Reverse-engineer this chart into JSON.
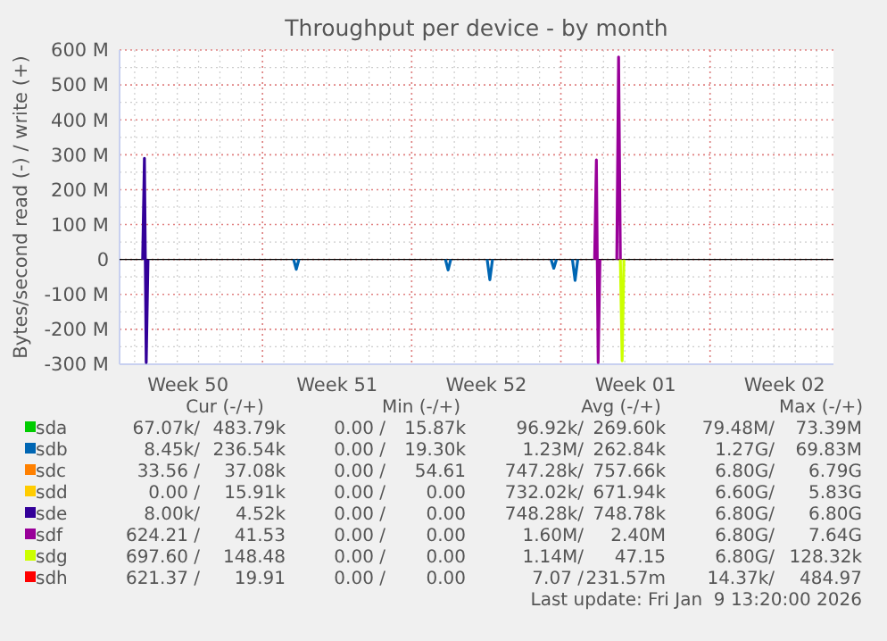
{
  "chart_data": {
    "type": "line",
    "title": "Throughput per device - by month",
    "ylabel": "Bytes/second read (-) / write (+)",
    "xlim": [
      "2025-12-08T07:00",
      "2026-01-10T19:00"
    ],
    "ylim": [
      -300,
      600
    ],
    "xticks": [
      {
        "value": "2025-12-11T12:00",
        "label": "Week 50"
      },
      {
        "value": "2025-12-15",
        "label": null
      },
      {
        "value": "2025-12-18T12:00",
        "label": "Week 51"
      },
      {
        "value": "2025-12-22",
        "label": null
      },
      {
        "value": "2025-12-25T12:00",
        "label": "Week 52"
      },
      {
        "value": "2025-12-29",
        "label": null
      },
      {
        "value": "2026-01-01T12:00",
        "label": "Week 01"
      },
      {
        "value": "2026-01-05",
        "label": null
      },
      {
        "value": "2026-01-08T12:00",
        "label": "Week 02"
      }
    ],
    "yticks": [
      {
        "value": -300,
        "label": "-300 M"
      },
      {
        "value": -200,
        "label": "-200 M"
      },
      {
        "value": -100,
        "label": "-100 M"
      },
      0,
      {
        "value": 100,
        "label": "100 M"
      },
      {
        "value": 200,
        "label": "200 M"
      },
      {
        "value": 300,
        "label": "300 M"
      },
      {
        "value": 400,
        "label": "400 M"
      },
      {
        "value": 500,
        "label": "500 M"
      },
      {
        "value": 600,
        "label": "600 M"
      }
    ],
    "grid": true,
    "legend": "bottom",
    "series": [
      {
        "name": "sda",
        "color": "#00cc00"
      },
      {
        "name": "sdb",
        "color": "#0066b3",
        "x": [
          "2025-12-16T11:00",
          "2025-12-16T14:00",
          "2025-12-16T17:00",
          "2025-12-16T18:00",
          "2025-12-23T14:00",
          "2025-12-23T17:00",
          "2025-12-23T20:00",
          "2025-12-23T21:00",
          "2025-12-25T13:00",
          "2025-12-25T16:00",
          "2025-12-25T19:00",
          "2025-12-25T20:00",
          "2025-12-28T13:00",
          "2025-12-28T16:00",
          "2025-12-28T19:00",
          "2025-12-28T20:00",
          "2025-12-29T13:00",
          "2025-12-29T16:00",
          "2025-12-29T19:00"
        ],
        "values": [
          0,
          -28,
          0,
          null,
          0,
          -30,
          0,
          null,
          0,
          -58,
          0,
          null,
          0,
          -25,
          0,
          null,
          0,
          -60,
          0
        ]
      },
      {
        "name": "sdc",
        "color": "#ff8000"
      },
      {
        "name": "sdd",
        "color": "#ffcc00"
      },
      {
        "name": "sde",
        "color": "#330099",
        "x": [
          "2025-12-09T09:00",
          "2025-12-09T11:00",
          "2025-12-09T12:00",
          "2025-12-09T13:00",
          "2025-12-09T15:00"
        ],
        "values": [
          0,
          290,
          0,
          -295,
          0
        ]
      },
      {
        "name": "sdf",
        "color": "#990099",
        "x": [
          "2025-12-30T14:00",
          "2025-12-30T16:00",
          "2025-12-30T17:00",
          "2025-12-30T18:00",
          "2025-12-30T20:00",
          "2025-12-30T21:00",
          "2025-12-31T15:00",
          "2025-12-31T17:00",
          "2025-12-31T19:00"
        ],
        "values": [
          0,
          285,
          0,
          -295,
          0,
          null,
          0,
          580,
          0
        ]
      },
      {
        "name": "sdg",
        "color": "#ccff00",
        "x": [
          "2025-12-31T19:00",
          "2025-12-31T21:00",
          "2025-12-31T23:00"
        ],
        "values": [
          0,
          -290,
          0
        ]
      },
      {
        "name": "sdh",
        "color": "#ff0000"
      }
    ],
    "annotations": [
      "Cur (-/+)",
      "Min (-/+)",
      "Avg (-/+)",
      "Max (-/+)",
      "67.07k/",
      "483.79k",
      "0.00 /",
      "15.87k",
      "96.92k/",
      "269.60k",
      "79.48M/",
      "73.39M",
      "8.45k/",
      "236.54k",
      "0.00 /",
      "19.30k",
      "1.23M/",
      "262.84k",
      "1.27G/",
      "69.83M",
      "33.56 /",
      "37.08k",
      "0.00 /",
      "54.61",
      "747.28k/",
      "757.66k",
      "6.80G/",
      "6.79G",
      "0.00 /",
      "15.91k",
      "0.00 /",
      "0.00",
      "732.02k/",
      "671.94k",
      "6.60G/",
      "5.83G",
      "8.00k/",
      "4.52k",
      "0.00 /",
      "0.00",
      "748.28k/",
      "748.78k",
      "6.80G/",
      "6.80G",
      "624.21 /",
      "41.53",
      "0.00 /",
      "0.00",
      "1.60M/",
      "2.40M",
      "6.80G/",
      "7.64G",
      "697.60 /",
      "148.48",
      "0.00 /",
      "0.00",
      "1.14M/",
      "47.15",
      "6.80G/",
      "128.32k",
      "621.37 /",
      "19.91",
      "0.00 /",
      "0.00",
      "7.07 /",
      "231.57m",
      "14.37k/",
      "484.97",
      "Last update: Fri Jan  9 13:20:00 2026"
    ]
  }
}
